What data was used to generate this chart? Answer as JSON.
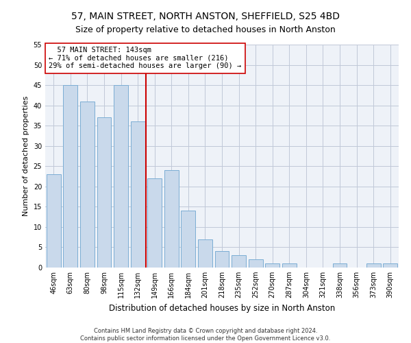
{
  "title": "57, MAIN STREET, NORTH ANSTON, SHEFFIELD, S25 4BD",
  "subtitle": "Size of property relative to detached houses in North Anston",
  "xlabel": "Distribution of detached houses by size in North Anston",
  "ylabel": "Number of detached properties",
  "footer_line1": "Contains HM Land Registry data © Crown copyright and database right 2024.",
  "footer_line2": "Contains public sector information licensed under the Open Government Licence v3.0.",
  "categories": [
    "46sqm",
    "63sqm",
    "80sqm",
    "98sqm",
    "115sqm",
    "132sqm",
    "149sqm",
    "166sqm",
    "184sqm",
    "201sqm",
    "218sqm",
    "235sqm",
    "252sqm",
    "270sqm",
    "287sqm",
    "304sqm",
    "321sqm",
    "338sqm",
    "356sqm",
    "373sqm",
    "390sqm"
  ],
  "values": [
    23,
    45,
    41,
    37,
    45,
    36,
    22,
    24,
    14,
    7,
    4,
    3,
    2,
    1,
    1,
    0,
    0,
    1,
    0,
    1,
    1
  ],
  "bar_color": "#c9d9eb",
  "bar_edge_color": "#7aadd4",
  "property_line_x": 5.5,
  "property_line_color": "#cc0000",
  "annotation_line1": "  57 MAIN STREET: 143sqm",
  "annotation_line2": "← 71% of detached houses are smaller (216)",
  "annotation_line3": "29% of semi-detached houses are larger (90) →",
  "annotation_box_color": "#cc0000",
  "ylim": [
    0,
    55
  ],
  "yticks": [
    0,
    5,
    10,
    15,
    20,
    25,
    30,
    35,
    40,
    45,
    50,
    55
  ],
  "grid_color": "#c0c8d8",
  "background_color": "#eef2f8",
  "title_fontsize": 10,
  "subtitle_fontsize": 9,
  "xlabel_fontsize": 8.5,
  "ylabel_fontsize": 8,
  "tick_fontsize": 7,
  "annotation_fontsize": 7.5,
  "footer_fontsize": 6
}
